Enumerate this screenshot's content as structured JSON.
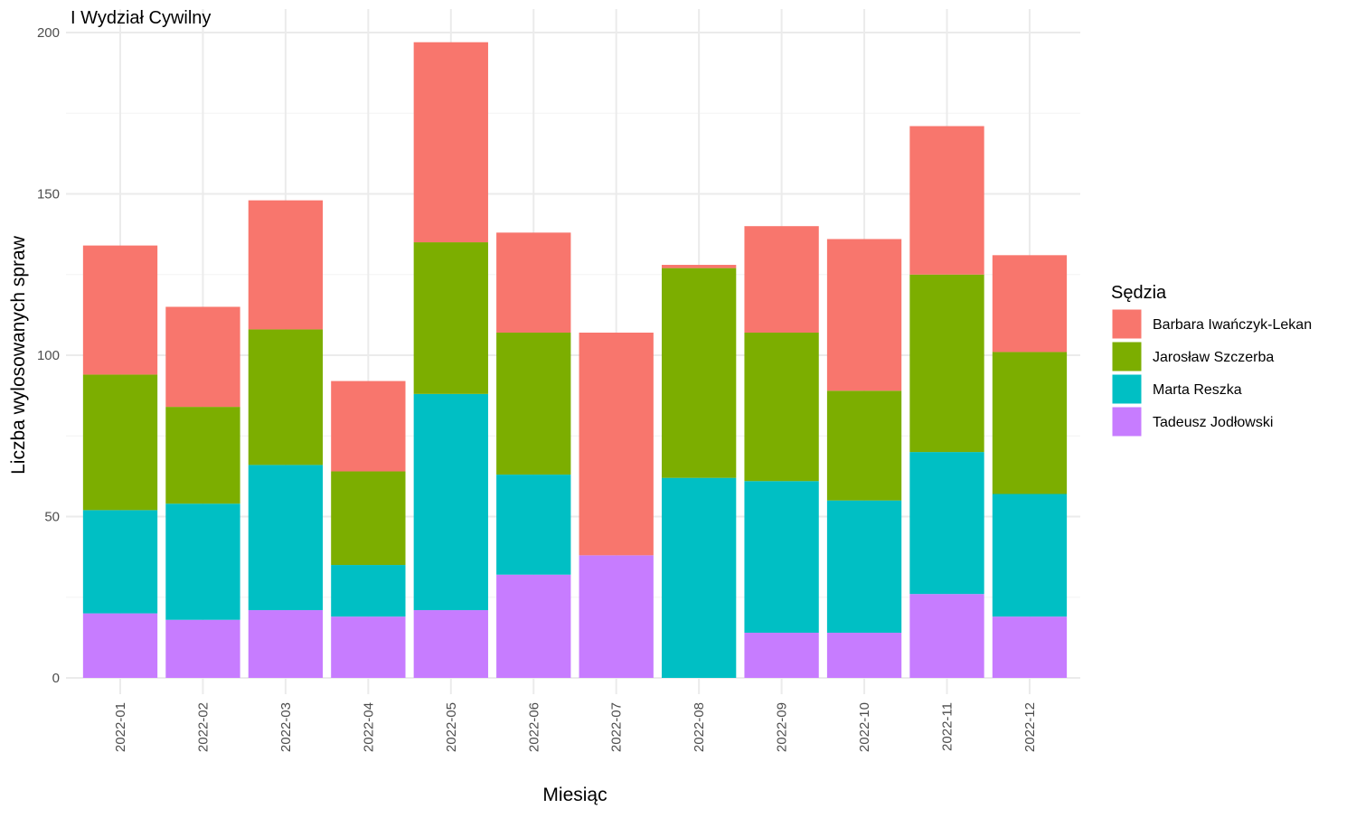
{
  "chart_data": {
    "type": "bar",
    "stacked": true,
    "title": "I Wydział Cywilny",
    "xlabel": "Miesiąc",
    "ylabel": "Liczba wylosowanych spraw",
    "ylim": [
      0,
      200
    ],
    "yticks": [
      "0",
      "50",
      "100",
      "150",
      "200"
    ],
    "grid": true,
    "legend": {
      "title": "Sędzia",
      "position": "right"
    },
    "categories": [
      "2022-01",
      "2022-02",
      "2022-03",
      "2022-04",
      "2022-05",
      "2022-06",
      "2022-07",
      "2022-08",
      "2022-09",
      "2022-10",
      "2022-11",
      "2022-12"
    ],
    "series": [
      {
        "name": "Tadeusz Jodłowski",
        "color": "#C77CFF",
        "values": [
          20,
          18,
          21,
          19,
          21,
          32,
          38,
          0,
          14,
          14,
          26,
          19
        ]
      },
      {
        "name": "Marta Reszka",
        "color": "#00BFC4",
        "values": [
          32,
          36,
          45,
          16,
          67,
          31,
          0,
          62,
          47,
          41,
          44,
          38
        ]
      },
      {
        "name": "Jarosław Szczerba",
        "color": "#7CAE00",
        "values": [
          42,
          30,
          42,
          29,
          47,
          44,
          0,
          65,
          46,
          34,
          55,
          44
        ]
      },
      {
        "name": "Barbara Iwańczyk-Lekan",
        "color": "#F8766D",
        "values": [
          40,
          31,
          40,
          28,
          62,
          31,
          69,
          1,
          33,
          47,
          46,
          30
        ]
      }
    ],
    "legend_order": [
      "Barbara Iwańczyk-Lekan",
      "Jarosław Szczerba",
      "Marta Reszka",
      "Tadeusz Jodłowski"
    ]
  }
}
